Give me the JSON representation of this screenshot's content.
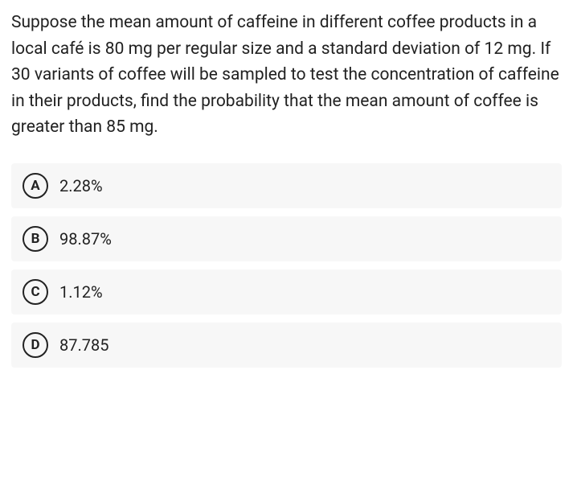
{
  "question": {
    "text": "Suppose the mean amount of caffeine in different coffee products in a local café is 80 mg per regular size and a standard deviation of 12 mg. If 30 variants of coffee will be sampled to test the concentration of caffeine in their products, find the probability that the mean amount of coffee is greater than 85 mg.",
    "text_color": "#222222",
    "text_fontsize": 21,
    "background_color": "#ffffff"
  },
  "options": [
    {
      "letter": "A",
      "label": "2.28%"
    },
    {
      "letter": "B",
      "label": "98.87%"
    },
    {
      "letter": "C",
      "label": "1.12%"
    },
    {
      "letter": "D",
      "label": "87.785"
    }
  ],
  "option_styling": {
    "row_background": "#f7f7f7",
    "circle_border_color": "#222222",
    "circle_border_width": 2.5,
    "letter_fontsize": 17,
    "label_fontsize": 20,
    "label_color": "#222222"
  }
}
